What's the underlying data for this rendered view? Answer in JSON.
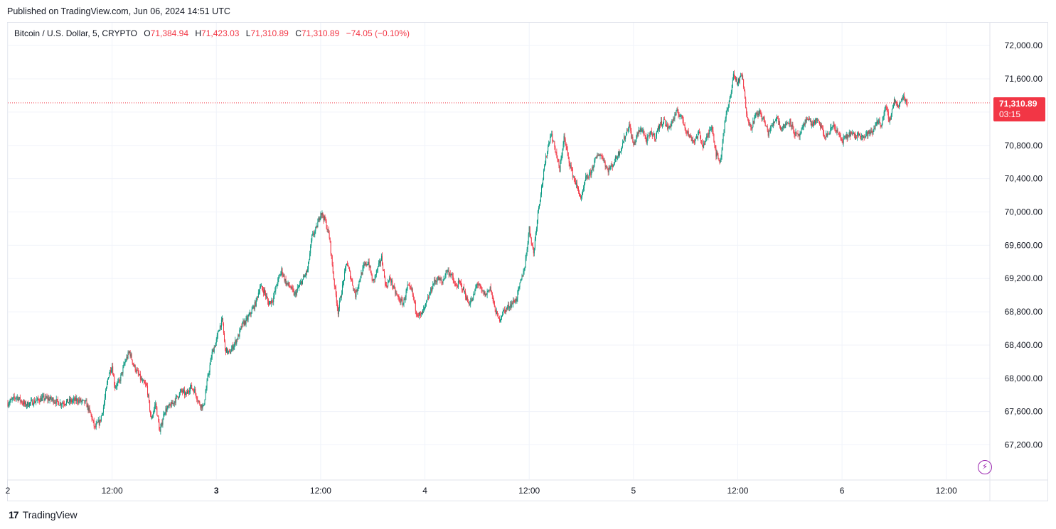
{
  "header": {
    "published": "Published on TradingView.com, Jun 06, 2024 14:51 UTC"
  },
  "legend": {
    "symbol": "Bitcoin / U.S. Dollar, 5, CRYPTO",
    "open_label": "O",
    "open": "71,384.94",
    "high_label": "H",
    "high": "71,423.03",
    "low_label": "L",
    "low": "71,310.89",
    "close_label": "C",
    "close": "71,310.89",
    "change": "−74.05 (−0.10%)"
  },
  "price_label": {
    "price": "71,310.89",
    "countdown": "03:15"
  },
  "footer": {
    "brand": "TradingView",
    "logo": "tradingview-logo-icon"
  },
  "colors": {
    "up": "#089981",
    "down": "#f23645",
    "grid": "#f0f3fa",
    "last_price_line": "#f23645"
  },
  "chart_data": {
    "type": "candlestick",
    "title": "Bitcoin / U.S. Dollar, 5, CRYPTO",
    "last_price": 71310.89,
    "ylim": [
      66800,
      72400
    ],
    "y_ticks": [
      "72,000.00",
      "71,600.00",
      "71,200.00",
      "70,800.00",
      "70,400.00",
      "70,000.00",
      "69,600.00",
      "69,200.00",
      "68,800.00",
      "68,400.00",
      "68,000.00",
      "67,600.00",
      "67,200.00"
    ],
    "y_tick_values": [
      72000,
      71600,
      71200,
      70800,
      70400,
      70000,
      69600,
      69200,
      68800,
      68400,
      68000,
      67600,
      67200
    ],
    "x_ticks": [
      {
        "label": "2",
        "hour": 0,
        "bold": false
      },
      {
        "label": "12:00",
        "hour": 12,
        "bold": false
      },
      {
        "label": "3",
        "hour": 24,
        "bold": true
      },
      {
        "label": "12:00",
        "hour": 36,
        "bold": false
      },
      {
        "label": "4",
        "hour": 48,
        "bold": false
      },
      {
        "label": "12:00",
        "hour": 60,
        "bold": false
      },
      {
        "label": "5",
        "hour": 72,
        "bold": false
      },
      {
        "label": "12:00",
        "hour": 84,
        "bold": false
      },
      {
        "label": "6",
        "hour": 96,
        "bold": false
      },
      {
        "label": "12:00",
        "hour": 108,
        "bold": false
      }
    ],
    "x_range_hours": [
      0,
      110.85
    ],
    "path_hours": [
      0,
      1,
      2,
      3,
      4,
      5,
      6,
      7,
      8,
      9,
      9.6,
      10,
      10.3,
      10.6,
      11,
      11.6,
      12,
      12.3,
      12.8,
      13.5,
      14,
      14.5,
      15,
      15.5,
      16,
      16.5,
      17,
      17.5,
      18,
      18.5,
      19,
      19.5,
      20,
      20.5,
      21,
      21.5,
      22,
      22.5,
      23,
      23.5,
      24,
      24.3,
      24.7,
      25,
      25.5,
      26,
      26.5,
      27,
      27.5,
      28,
      28.5,
      29,
      29.5,
      30,
      30.5,
      31,
      31.5,
      32,
      32.5,
      33,
      33.5,
      34,
      34.5,
      35,
      35.5,
      36,
      36.5,
      37,
      37.5,
      38,
      38.5,
      39,
      39.5,
      40,
      40.5,
      41,
      41.5,
      42,
      42.5,
      43,
      43.5,
      44,
      44.5,
      45,
      45.5,
      46,
      46.5,
      47,
      47.5,
      48,
      48.5,
      49,
      49.5,
      50,
      50.5,
      51,
      51.5,
      52,
      52.5,
      53,
      53.5,
      54,
      54.5,
      55,
      55.5,
      56,
      56.5,
      57,
      57.5,
      58,
      58.5,
      59,
      59.5,
      60,
      60.5,
      61,
      61.5,
      62,
      62.5,
      63,
      63.5,
      64,
      64.5,
      65,
      65.5,
      66,
      66.5,
      67,
      67.5,
      68,
      68.5,
      69,
      69.5,
      70,
      70.5,
      71,
      71.5,
      72,
      72.5,
      73,
      73.5,
      74,
      74.5,
      75,
      75.5,
      76,
      76.5,
      77,
      77.5,
      78,
      78.5,
      79,
      79.5,
      80,
      80.5,
      81,
      81.5,
      82,
      82.5,
      83,
      83.5,
      84,
      84.5,
      85,
      85.5,
      86,
      86.5,
      87,
      87.5,
      88,
      88.5,
      89,
      89.5,
      90,
      90.5,
      91,
      91.5,
      92,
      92.5,
      93,
      93.5,
      94,
      94.5,
      95,
      95.5,
      96,
      96.5,
      97,
      97.5,
      98,
      98.5,
      99,
      99.5,
      100,
      100.5,
      101,
      101.5,
      102,
      102.5,
      103,
      103.5,
      104,
      104.5,
      105,
      105.5,
      106,
      106.5,
      107,
      107.5,
      108,
      108.5,
      109,
      109.5,
      110,
      110.85
    ],
    "path_prices": [
      67700,
      67780,
      67680,
      67720,
      67760,
      67750,
      67700,
      67720,
      67740,
      67700,
      67550,
      67400,
      67450,
      67480,
      67650,
      68050,
      68150,
      67900,
      67950,
      68200,
      68320,
      68150,
      68050,
      67950,
      67900,
      67500,
      67700,
      67350,
      67600,
      67650,
      67700,
      67780,
      67850,
      67800,
      67900,
      67850,
      67700,
      67650,
      68000,
      68300,
      68450,
      68600,
      68700,
      68350,
      68300,
      68400,
      68500,
      68650,
      68700,
      68800,
      68900,
      69100,
      69050,
      68900,
      68950,
      69150,
      69300,
      69150,
      69100,
      69000,
      69100,
      69200,
      69300,
      69700,
      69800,
      70000,
      69900,
      69700,
      69200,
      68800,
      69100,
      69400,
      69200,
      69000,
      69200,
      69350,
      69400,
      69150,
      69300,
      69450,
      69100,
      69200,
      69050,
      68950,
      68900,
      69100,
      69050,
      68800,
      68750,
      68850,
      69000,
      69150,
      69200,
      69150,
      69300,
      69250,
      69100,
      69150,
      69050,
      68900,
      68950,
      69150,
      69050,
      69000,
      69100,
      68850,
      68700,
      68800,
      68850,
      68900,
      68950,
      69150,
      69350,
      69800,
      69500,
      70000,
      70350,
      70700,
      70950,
      70750,
      70500,
      70900,
      70650,
      70450,
      70300,
      70150,
      70400,
      70450,
      70600,
      70700,
      70650,
      70500,
      70550,
      70650,
      70750,
      70900,
      71050,
      70800,
      70950,
      71000,
      70850,
      70950,
      70900,
      71050,
      71100,
      71000,
      71100,
      71200,
      71150,
      71000,
      70900,
      70850,
      70950,
      70800,
      70900,
      71050,
      70700,
      70600,
      71100,
      71300,
      71650,
      71550,
      71650,
      71200,
      71000,
      71150,
      71200,
      71100,
      70950,
      71050,
      71150,
      71000,
      71050,
      71100,
      70950,
      70900,
      71000,
      71150,
      71050,
      71100,
      71050,
      70900,
      70950,
      71050,
      70950,
      70850,
      70900,
      70950,
      70900,
      70950,
      70900,
      70950,
      70950,
      71100,
      71050,
      71250,
      71100,
      71350,
      71250,
      71400,
      71310.89
    ]
  }
}
